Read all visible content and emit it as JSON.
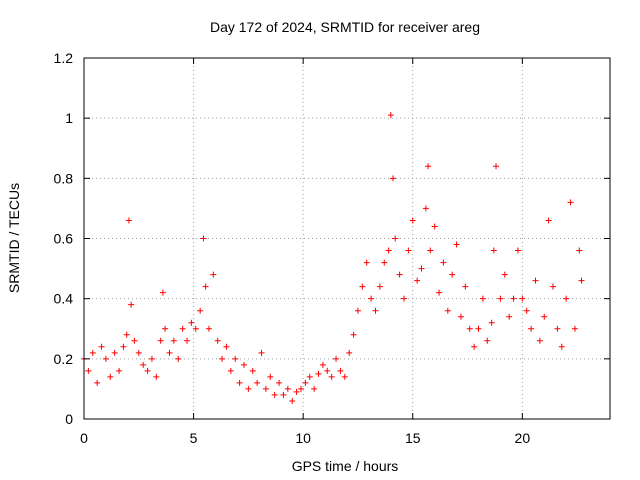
{
  "chart_data": {
    "type": "scatter",
    "title": "Day 172 of 2024, SRMTID for receiver areg",
    "xlabel": "GPS time / hours",
    "ylabel": "SRMTID / TECUs",
    "xlim": [
      0,
      24
    ],
    "ylim": [
      0,
      1.2
    ],
    "x_ticks": [
      0,
      5,
      10,
      15,
      20
    ],
    "x_tick_labels": [
      "0",
      "5",
      "10",
      "15",
      "20"
    ],
    "y_ticks": [
      0,
      0.2,
      0.4,
      0.6,
      0.8,
      1.0,
      1.2
    ],
    "y_tick_labels": [
      "0",
      "0.2",
      "0.4",
      "0.6",
      "0.8",
      "1",
      "1.2"
    ],
    "grid": true,
    "marker": "plus",
    "series": [
      {
        "name": "SRMTID",
        "color": "#ff0000",
        "x": [
          0.0,
          0.2,
          0.4,
          0.6,
          0.8,
          1.0,
          1.2,
          1.4,
          1.6,
          1.8,
          1.95,
          2.05,
          2.15,
          2.3,
          2.5,
          2.7,
          2.9,
          3.1,
          3.3,
          3.5,
          3.6,
          3.7,
          3.9,
          4.1,
          4.3,
          4.5,
          4.7,
          4.9,
          5.1,
          5.3,
          5.45,
          5.55,
          5.7,
          5.9,
          6.1,
          6.3,
          6.5,
          6.7,
          6.9,
          7.1,
          7.3,
          7.5,
          7.7,
          7.9,
          8.1,
          8.3,
          8.5,
          8.7,
          8.9,
          9.1,
          9.3,
          9.5,
          9.7,
          9.9,
          10.1,
          10.3,
          10.5,
          10.7,
          10.9,
          11.1,
          11.3,
          11.5,
          11.7,
          11.9,
          12.1,
          12.3,
          12.5,
          12.7,
          12.9,
          13.1,
          13.3,
          13.5,
          13.7,
          13.9,
          14.0,
          14.1,
          14.2,
          14.4,
          14.6,
          14.8,
          15.0,
          15.2,
          15.4,
          15.6,
          15.7,
          15.8,
          16.0,
          16.2,
          16.4,
          16.6,
          16.8,
          17.0,
          17.2,
          17.4,
          17.6,
          17.8,
          18.0,
          18.2,
          18.4,
          18.6,
          18.7,
          18.8,
          19.0,
          19.2,
          19.4,
          19.6,
          19.8,
          20.0,
          20.2,
          20.4,
          20.6,
          20.8,
          21.0,
          21.2,
          21.4,
          21.6,
          21.8,
          22.0,
          22.2,
          22.4,
          22.6,
          22.7
        ],
        "y": [
          0.2,
          0.16,
          0.22,
          0.12,
          0.24,
          0.2,
          0.14,
          0.22,
          0.16,
          0.24,
          0.28,
          0.66,
          0.38,
          0.26,
          0.22,
          0.18,
          0.16,
          0.2,
          0.14,
          0.26,
          0.42,
          0.3,
          0.22,
          0.26,
          0.2,
          0.3,
          0.26,
          0.32,
          0.3,
          0.36,
          0.6,
          0.44,
          0.3,
          0.48,
          0.26,
          0.2,
          0.24,
          0.16,
          0.2,
          0.12,
          0.18,
          0.1,
          0.16,
          0.12,
          0.22,
          0.1,
          0.14,
          0.08,
          0.12,
          0.08,
          0.1,
          0.06,
          0.09,
          0.1,
          0.12,
          0.14,
          0.1,
          0.15,
          0.18,
          0.16,
          0.14,
          0.2,
          0.16,
          0.14,
          0.22,
          0.28,
          0.36,
          0.44,
          0.52,
          0.4,
          0.36,
          0.44,
          0.52,
          0.56,
          1.01,
          0.8,
          0.6,
          0.48,
          0.4,
          0.56,
          0.66,
          0.46,
          0.5,
          0.7,
          0.84,
          0.56,
          0.64,
          0.42,
          0.52,
          0.36,
          0.48,
          0.58,
          0.34,
          0.44,
          0.3,
          0.24,
          0.3,
          0.4,
          0.26,
          0.32,
          0.56,
          0.84,
          0.4,
          0.48,
          0.34,
          0.4,
          0.56,
          0.4,
          0.36,
          0.3,
          0.46,
          0.26,
          0.34,
          0.66,
          0.44,
          0.3,
          0.24,
          0.4,
          0.72,
          0.3,
          0.56,
          0.46
        ]
      }
    ]
  }
}
